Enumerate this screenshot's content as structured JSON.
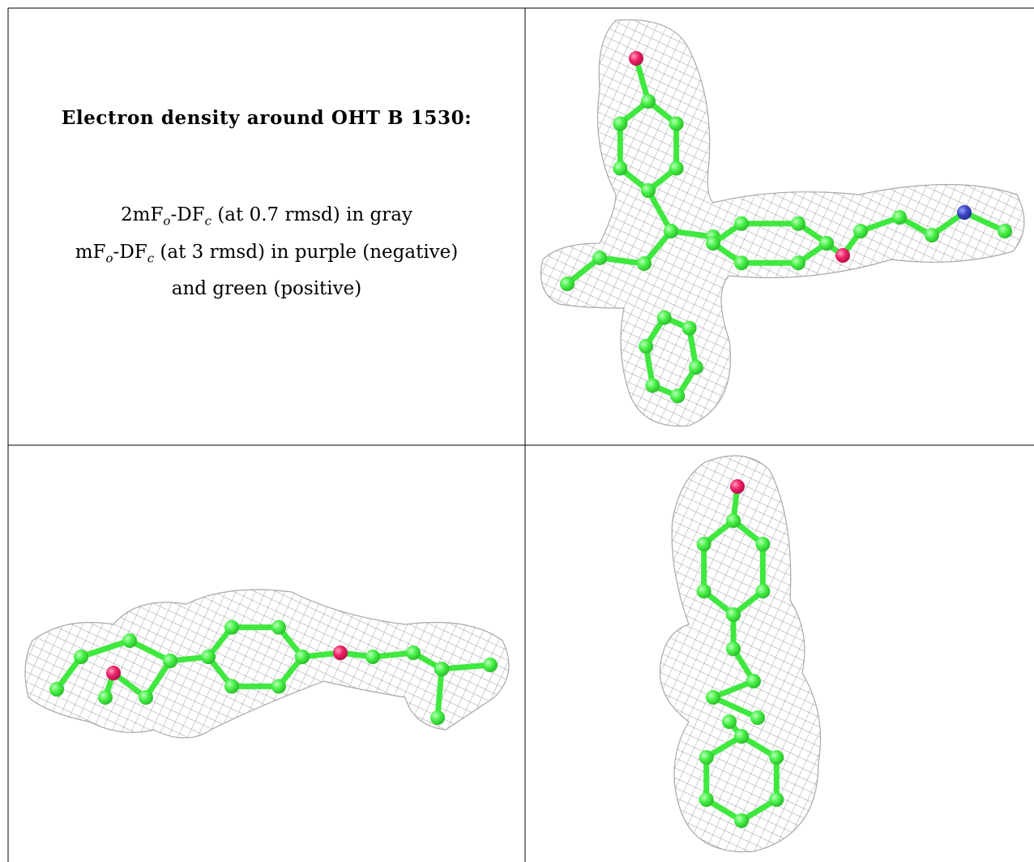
{
  "caption": {
    "title": "Electron density around OHT B 1530:",
    "lines": [
      [
        {
          "text": "2mF",
          "sub": "o"
        },
        {
          "text": "-DF",
          "sub": "c"
        },
        {
          "text": " (at 0.7 rmsd) in gray"
        }
      ],
      [
        {
          "text": "mF",
          "sub": "o"
        },
        {
          "text": "-DF",
          "sub": "c"
        },
        {
          "text": " (at 3 rmsd) in purple (negative)"
        }
      ],
      [
        {
          "text": "and green (positive)"
        }
      ]
    ]
  }
}
